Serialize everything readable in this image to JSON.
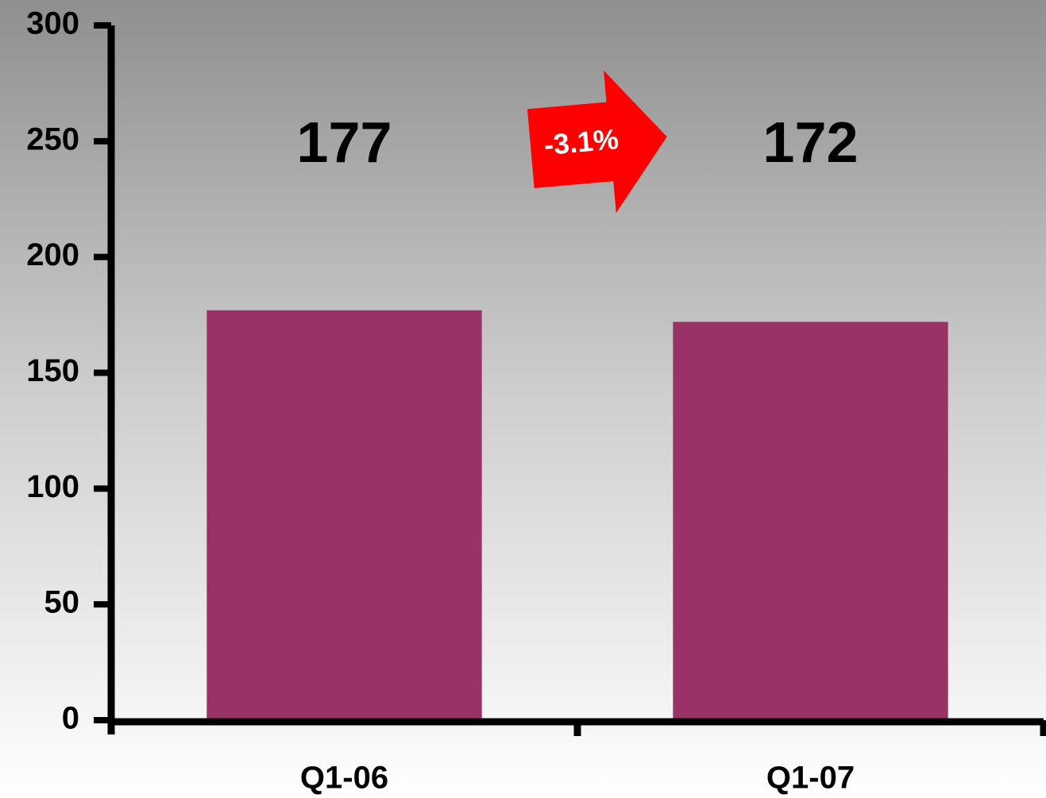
{
  "chart_data": {
    "type": "bar",
    "categories": [
      "Q1-06",
      "Q1-07"
    ],
    "values": [
      177,
      172
    ],
    "color": "#993366",
    "ylim": [
      0,
      300
    ],
    "yticks": [
      0,
      50,
      100,
      150,
      200,
      250,
      300
    ],
    "annotation": "-3.1%"
  }
}
